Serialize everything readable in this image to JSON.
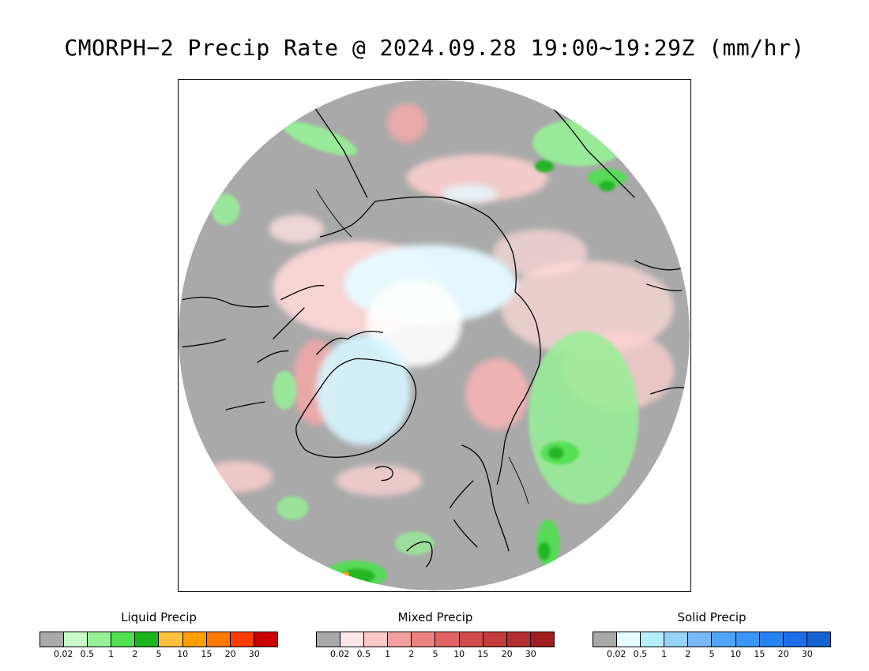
{
  "title": "CMORPH−2 Precip Rate @ 2024.09.28 19:00~19:29Z (mm/hr)",
  "map": {
    "projection": "north polar stereographic",
    "no_precip_color": "#a9a9a9",
    "coastline_color": "#000000",
    "background_color": "#ffffff"
  },
  "legends": [
    {
      "title": "Liquid Precip",
      "colors": [
        "#a9a9a9",
        "#c8fac8",
        "#96f096",
        "#50e050",
        "#1eb41e",
        "#ffc03c",
        "#ffa000",
        "#ff7800",
        "#ff3c00",
        "#c80000"
      ],
      "ticks": [
        "0.02",
        "0.5",
        "1",
        "2",
        "5",
        "10",
        "15",
        "20",
        "30"
      ]
    },
    {
      "title": "Mixed Precip",
      "colors": [
        "#a9a9a9",
        "#ffe6e6",
        "#ffc8c8",
        "#f4a0a0",
        "#ec8282",
        "#e06464",
        "#d24b4b",
        "#c33c3c",
        "#b42d2d",
        "#a01e1e"
      ],
      "ticks": [
        "0.02",
        "0.5",
        "1",
        "2",
        "5",
        "10",
        "15",
        "20",
        "30"
      ]
    },
    {
      "title": "Solid Precip",
      "colors": [
        "#a9a9a9",
        "#e6ffff",
        "#b4f0fa",
        "#96d2fa",
        "#78b9fa",
        "#50a5f5",
        "#3c96f5",
        "#2882f0",
        "#1e6eeb",
        "#1464d2"
      ],
      "ticks": [
        "0.02",
        "0.5",
        "1",
        "2",
        "5",
        "10",
        "15",
        "20",
        "30"
      ]
    }
  ]
}
